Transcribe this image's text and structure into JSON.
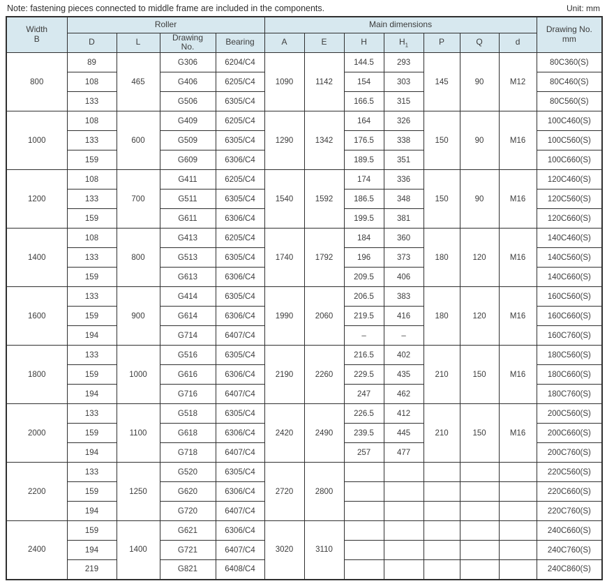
{
  "colors": {
    "header_bg": "#d7e8ef",
    "border": "#2f2f2f",
    "text": "#3c3c3c"
  },
  "note": "Note: fastening pieces connected to middle frame are included in the components.",
  "unit": "Unit: mm",
  "header": {
    "width_b": "Width\nB",
    "roller": "Roller",
    "main_dimensions": "Main dimensions",
    "drawing_no_mm": "Drawing No.\nmm",
    "cols": {
      "d": "D",
      "l": "L",
      "drawing_no": "Drawing\nNo.",
      "bearing": "Bearing",
      "a": "A",
      "e": "E",
      "h": "H",
      "h1_base": "H",
      "h1_sub": "1",
      "p": "P",
      "q": "Q",
      "d_small": "d"
    }
  },
  "groups": [
    {
      "b": "800",
      "l": "465",
      "a": "1090",
      "e": "1142",
      "p": "145",
      "q": "90",
      "d_thread": "M12",
      "merged_pqd": true,
      "rows": [
        {
          "d": "89",
          "drawing": "G306",
          "bearing": "6204/C4",
          "h": "144.5",
          "h1": "293",
          "code": "80C360(S)"
        },
        {
          "d": "108",
          "drawing": "G406",
          "bearing": "6205/C4",
          "h": "154",
          "h1": "303",
          "code": "80C460(S)"
        },
        {
          "d": "133",
          "drawing": "G506",
          "bearing": "6305/C4",
          "h": "166.5",
          "h1": "315",
          "code": "80C560(S)"
        }
      ]
    },
    {
      "b": "1000",
      "l": "600",
      "a": "1290",
      "e": "1342",
      "p": "150",
      "q": "90",
      "d_thread": "M16",
      "merged_pqd": true,
      "rows": [
        {
          "d": "108",
          "drawing": "G409",
          "bearing": "6205/C4",
          "h": "164",
          "h1": "326",
          "code": "100C460(S)"
        },
        {
          "d": "133",
          "drawing": "G509",
          "bearing": "6305/C4",
          "h": "176.5",
          "h1": "338",
          "code": "100C560(S)"
        },
        {
          "d": "159",
          "drawing": "G609",
          "bearing": "6306/C4",
          "h": "189.5",
          "h1": "351",
          "code": "100C660(S)"
        }
      ]
    },
    {
      "b": "1200",
      "l": "700",
      "a": "1540",
      "e": "1592",
      "p": "150",
      "q": "90",
      "d_thread": "M16",
      "merged_pqd": true,
      "rows": [
        {
          "d": "108",
          "drawing": "G411",
          "bearing": "6205/C4",
          "h": "174",
          "h1": "336",
          "code": "120C460(S)"
        },
        {
          "d": "133",
          "drawing": "G511",
          "bearing": "6305/C4",
          "h": "186.5",
          "h1": "348",
          "code": "120C560(S)"
        },
        {
          "d": "159",
          "drawing": "G611",
          "bearing": "6306/C4",
          "h": "199.5",
          "h1": "381",
          "code": "120C660(S)"
        }
      ]
    },
    {
      "b": "1400",
      "l": "800",
      "a": "1740",
      "e": "1792",
      "p": "180",
      "q": "120",
      "d_thread": "M16",
      "merged_pqd": true,
      "rows": [
        {
          "d": "108",
          "drawing": "G413",
          "bearing": "6205/C4",
          "h": "184",
          "h1": "360",
          "code": "140C460(S)"
        },
        {
          "d": "133",
          "drawing": "G513",
          "bearing": "6305/C4",
          "h": "196",
          "h1": "373",
          "code": "140C560(S)"
        },
        {
          "d": "159",
          "drawing": "G613",
          "bearing": "6306/C4",
          "h": "209.5",
          "h1": "406",
          "code": "140C660(S)"
        }
      ]
    },
    {
      "b": "1600",
      "l": "900",
      "a": "1990",
      "e": "2060",
      "p": "180",
      "q": "120",
      "d_thread": "M16",
      "merged_pqd": true,
      "rows": [
        {
          "d": "133",
          "drawing": "G414",
          "bearing": "6305/C4",
          "h": "206.5",
          "h1": "383",
          "code": "160C560(S)"
        },
        {
          "d": "159",
          "drawing": "G614",
          "bearing": "6306/C4",
          "h": "219.5",
          "h1": "416",
          "code": "160C660(S)"
        },
        {
          "d": "194",
          "drawing": "G714",
          "bearing": "6407/C4",
          "h": "–",
          "h1": "–",
          "code": "160C760(S)"
        }
      ]
    },
    {
      "b": "1800",
      "l": "1000",
      "a": "2190",
      "e": "2260",
      "p": "210",
      "q": "150",
      "d_thread": "M16",
      "merged_pqd": true,
      "rows": [
        {
          "d": "133",
          "drawing": "G516",
          "bearing": "6305/C4",
          "h": "216.5",
          "h1": "402",
          "code": "180C560(S)"
        },
        {
          "d": "159",
          "drawing": "G616",
          "bearing": "6306/C4",
          "h": "229.5",
          "h1": "435",
          "code": "180C660(S)"
        },
        {
          "d": "194",
          "drawing": "G716",
          "bearing": "6407/C4",
          "h": "247",
          "h1": "462",
          "code": "180C760(S)"
        }
      ]
    },
    {
      "b": "2000",
      "l": "1100",
      "a": "2420",
      "e": "2490",
      "p": "210",
      "q": "150",
      "d_thread": "M16",
      "merged_pqd": true,
      "rows": [
        {
          "d": "133",
          "drawing": "G518",
          "bearing": "6305/C4",
          "h": "226.5",
          "h1": "412",
          "code": "200C560(S)"
        },
        {
          "d": "159",
          "drawing": "G618",
          "bearing": "6306/C4",
          "h": "239.5",
          "h1": "445",
          "code": "200C660(S)"
        },
        {
          "d": "194",
          "drawing": "G718",
          "bearing": "6407/C4",
          "h": "257",
          "h1": "477",
          "code": "200C760(S)"
        }
      ]
    },
    {
      "b": "2200",
      "l": "1250",
      "a": "2720",
      "e": "2800",
      "p": "",
      "q": "",
      "d_thread": "",
      "merged_pqd": false,
      "rows": [
        {
          "d": "133",
          "drawing": "G520",
          "bearing": "6305/C4",
          "h": "",
          "h1": "",
          "code": "220C560(S)"
        },
        {
          "d": "159",
          "drawing": "G620",
          "bearing": "6306/C4",
          "h": "",
          "h1": "",
          "code": "220C660(S)"
        },
        {
          "d": "194",
          "drawing": "G720",
          "bearing": "6407/C4",
          "h": "",
          "h1": "",
          "code": "220C760(S)"
        }
      ]
    },
    {
      "b": "2400",
      "l": "1400",
      "a": "3020",
      "e": "3110",
      "p": "",
      "q": "",
      "d_thread": "",
      "merged_pqd": false,
      "rows": [
        {
          "d": "159",
          "drawing": "G621",
          "bearing": "6306/C4",
          "h": "",
          "h1": "",
          "code": "240C660(S)"
        },
        {
          "d": "194",
          "drawing": "G721",
          "bearing": "6407/C4",
          "h": "",
          "h1": "",
          "code": "240C760(S)"
        },
        {
          "d": "219",
          "drawing": "G821",
          "bearing": "6408/C4",
          "h": "",
          "h1": "",
          "code": "240C860(S)"
        }
      ]
    }
  ]
}
